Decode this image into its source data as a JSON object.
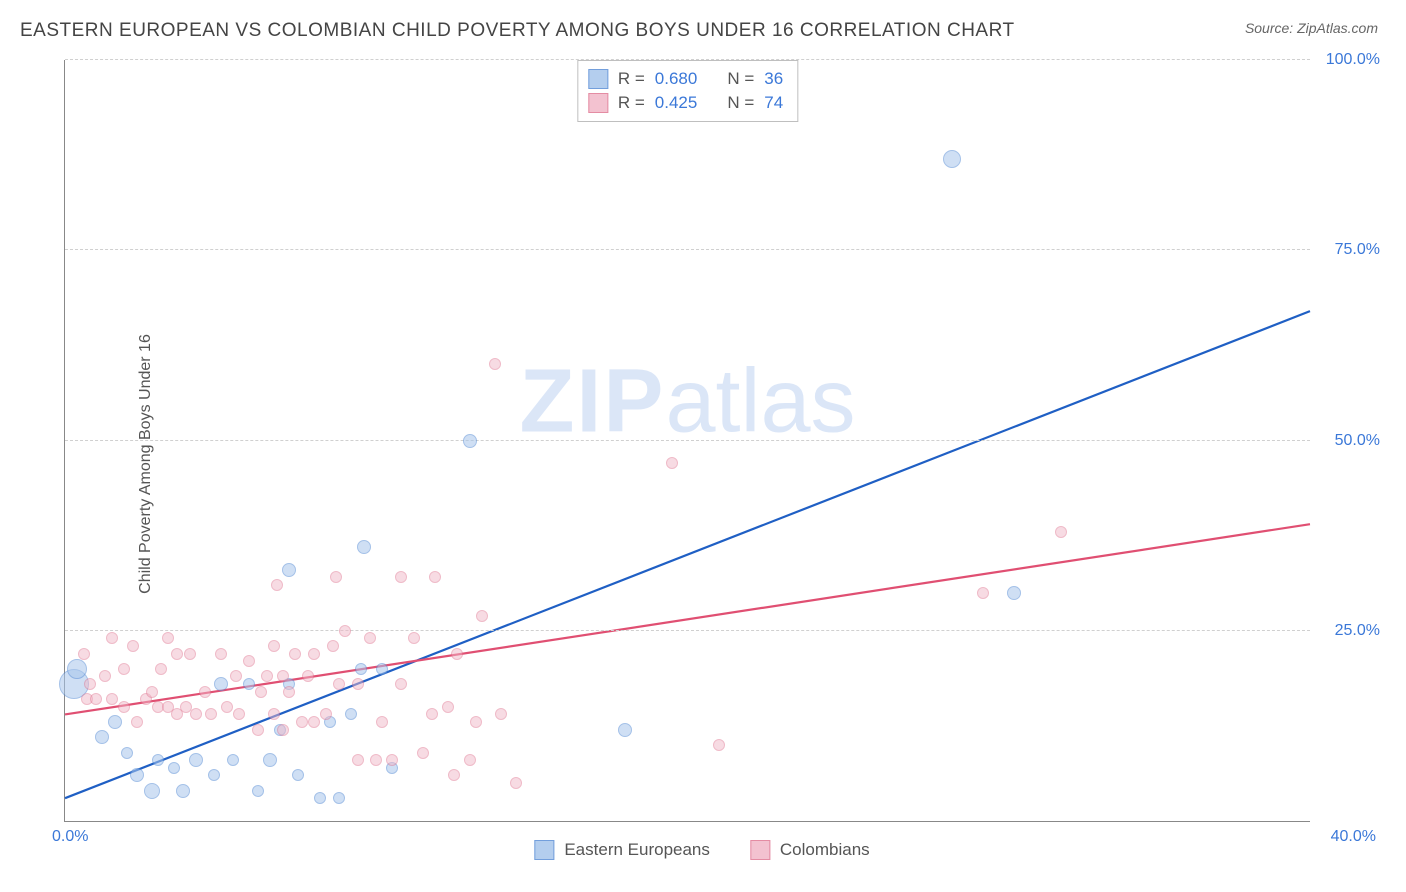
{
  "header": {
    "title": "EASTERN EUROPEAN VS COLOMBIAN CHILD POVERTY AMONG BOYS UNDER 16 CORRELATION CHART",
    "source_prefix": "Source: ",
    "source_name": "ZipAtlas.com"
  },
  "chart": {
    "type": "scatter",
    "ylabel": "Child Poverty Among Boys Under 16",
    "watermark_bold": "ZIP",
    "watermark_rest": "atlas",
    "xlim": [
      0,
      40
    ],
    "ylim": [
      0,
      100
    ],
    "yticks": [
      25,
      50,
      75,
      100
    ],
    "ytick_labels": [
      "25.0%",
      "50.0%",
      "75.0%",
      "100.0%"
    ],
    "x_origin_label": "0.0%",
    "x_max_label": "40.0%",
    "grid_color": "#d0d0d0",
    "axis_color": "#888888",
    "background_color": "#ffffff",
    "series": [
      {
        "name": "Eastern Europeans",
        "fill": "#a8c6ec",
        "fill_opacity": 0.55,
        "stroke": "#5b8fd6",
        "line_color": "#1f5fc4",
        "line_width": 2.2,
        "R": "0.680",
        "N": "36",
        "trend": {
          "x1": 0,
          "y1": 3,
          "x2": 40,
          "y2": 67
        },
        "points": [
          {
            "x": 0.3,
            "y": 18,
            "r": 15
          },
          {
            "x": 0.4,
            "y": 20,
            "r": 10
          },
          {
            "x": 1.2,
            "y": 11,
            "r": 7
          },
          {
            "x": 1.6,
            "y": 13,
            "r": 7
          },
          {
            "x": 2.0,
            "y": 9,
            "r": 6
          },
          {
            "x": 2.3,
            "y": 6,
            "r": 7
          },
          {
            "x": 2.8,
            "y": 4,
            "r": 8
          },
          {
            "x": 3.0,
            "y": 8,
            "r": 6
          },
          {
            "x": 3.5,
            "y": 7,
            "r": 6
          },
          {
            "x": 3.8,
            "y": 4,
            "r": 7
          },
          {
            "x": 4.2,
            "y": 8,
            "r": 7
          },
          {
            "x": 4.8,
            "y": 6,
            "r": 6
          },
          {
            "x": 5.0,
            "y": 18,
            "r": 7
          },
          {
            "x": 5.4,
            "y": 8,
            "r": 6
          },
          {
            "x": 5.9,
            "y": 18,
            "r": 6
          },
          {
            "x": 6.2,
            "y": 4,
            "r": 6
          },
          {
            "x": 6.6,
            "y": 8,
            "r": 7
          },
          {
            "x": 6.9,
            "y": 12,
            "r": 6
          },
          {
            "x": 7.2,
            "y": 18,
            "r": 6
          },
          {
            "x": 7.2,
            "y": 33,
            "r": 7
          },
          {
            "x": 7.5,
            "y": 6,
            "r": 6
          },
          {
            "x": 8.2,
            "y": 3,
            "r": 6
          },
          {
            "x": 8.5,
            "y": 13,
            "r": 6
          },
          {
            "x": 8.8,
            "y": 3,
            "r": 6
          },
          {
            "x": 9.2,
            "y": 14,
            "r": 6
          },
          {
            "x": 9.5,
            "y": 20,
            "r": 6
          },
          {
            "x": 9.6,
            "y": 36,
            "r": 7
          },
          {
            "x": 10.2,
            "y": 20,
            "r": 6
          },
          {
            "x": 10.5,
            "y": 7,
            "r": 6
          },
          {
            "x": 13.0,
            "y": 50,
            "r": 7
          },
          {
            "x": 18.0,
            "y": 12,
            "r": 7
          },
          {
            "x": 28.5,
            "y": 87,
            "r": 9
          },
          {
            "x": 30.5,
            "y": 30,
            "r": 7
          }
        ]
      },
      {
        "name": "Colombians",
        "fill": "#f1b8c8",
        "fill_opacity": 0.5,
        "stroke": "#e07893",
        "line_color": "#e04f72",
        "line_width": 2.2,
        "R": "0.425",
        "N": "74",
        "trend": {
          "x1": 0,
          "y1": 14,
          "x2": 40,
          "y2": 39
        },
        "points": [
          {
            "x": 0.6,
            "y": 22,
            "r": 6
          },
          {
            "x": 0.7,
            "y": 16,
            "r": 6
          },
          {
            "x": 0.8,
            "y": 18,
            "r": 6
          },
          {
            "x": 1.0,
            "y": 16,
            "r": 6
          },
          {
            "x": 1.3,
            "y": 19,
            "r": 6
          },
          {
            "x": 1.5,
            "y": 16,
            "r": 6
          },
          {
            "x": 1.5,
            "y": 24,
            "r": 6
          },
          {
            "x": 1.9,
            "y": 15,
            "r": 6
          },
          {
            "x": 1.9,
            "y": 20,
            "r": 6
          },
          {
            "x": 2.2,
            "y": 23,
            "r": 6
          },
          {
            "x": 2.3,
            "y": 13,
            "r": 6
          },
          {
            "x": 2.6,
            "y": 16,
            "r": 6
          },
          {
            "x": 2.8,
            "y": 17,
            "r": 6
          },
          {
            "x": 3.0,
            "y": 15,
            "r": 6
          },
          {
            "x": 3.1,
            "y": 20,
            "r": 6
          },
          {
            "x": 3.3,
            "y": 15,
            "r": 6
          },
          {
            "x": 3.3,
            "y": 24,
            "r": 6
          },
          {
            "x": 3.6,
            "y": 14,
            "r": 6
          },
          {
            "x": 3.6,
            "y": 22,
            "r": 6
          },
          {
            "x": 3.9,
            "y": 15,
            "r": 6
          },
          {
            "x": 4.0,
            "y": 22,
            "r": 6
          },
          {
            "x": 4.2,
            "y": 14,
            "r": 6
          },
          {
            "x": 4.5,
            "y": 17,
            "r": 6
          },
          {
            "x": 4.7,
            "y": 14,
            "r": 6
          },
          {
            "x": 5.0,
            "y": 22,
            "r": 6
          },
          {
            "x": 5.2,
            "y": 15,
            "r": 6
          },
          {
            "x": 5.5,
            "y": 19,
            "r": 6
          },
          {
            "x": 5.6,
            "y": 14,
            "r": 6
          },
          {
            "x": 5.9,
            "y": 21,
            "r": 6
          },
          {
            "x": 6.2,
            "y": 12,
            "r": 6
          },
          {
            "x": 6.3,
            "y": 17,
            "r": 6
          },
          {
            "x": 6.5,
            "y": 19,
            "r": 6
          },
          {
            "x": 6.7,
            "y": 14,
            "r": 6
          },
          {
            "x": 6.7,
            "y": 23,
            "r": 6
          },
          {
            "x": 6.8,
            "y": 31,
            "r": 6
          },
          {
            "x": 7.0,
            "y": 12,
            "r": 6
          },
          {
            "x": 7.0,
            "y": 19,
            "r": 6
          },
          {
            "x": 7.2,
            "y": 17,
            "r": 6
          },
          {
            "x": 7.4,
            "y": 22,
            "r": 6
          },
          {
            "x": 7.6,
            "y": 13,
            "r": 6
          },
          {
            "x": 7.8,
            "y": 19,
            "r": 6
          },
          {
            "x": 8.0,
            "y": 13,
            "r": 6
          },
          {
            "x": 8.0,
            "y": 22,
            "r": 6
          },
          {
            "x": 8.4,
            "y": 14,
            "r": 6
          },
          {
            "x": 8.6,
            "y": 23,
            "r": 6
          },
          {
            "x": 8.7,
            "y": 32,
            "r": 6
          },
          {
            "x": 8.8,
            "y": 18,
            "r": 6
          },
          {
            "x": 9.0,
            "y": 25,
            "r": 6
          },
          {
            "x": 9.4,
            "y": 8,
            "r": 6
          },
          {
            "x": 9.4,
            "y": 18,
            "r": 6
          },
          {
            "x": 9.8,
            "y": 24,
            "r": 6
          },
          {
            "x": 10.0,
            "y": 8,
            "r": 6
          },
          {
            "x": 10.2,
            "y": 13,
            "r": 6
          },
          {
            "x": 10.5,
            "y": 8,
            "r": 6
          },
          {
            "x": 10.8,
            "y": 18,
            "r": 6
          },
          {
            "x": 10.8,
            "y": 32,
            "r": 6
          },
          {
            "x": 11.2,
            "y": 24,
            "r": 6
          },
          {
            "x": 11.5,
            "y": 9,
            "r": 6
          },
          {
            "x": 11.8,
            "y": 14,
            "r": 6
          },
          {
            "x": 11.9,
            "y": 32,
            "r": 6
          },
          {
            "x": 12.3,
            "y": 15,
            "r": 6
          },
          {
            "x": 12.5,
            "y": 6,
            "r": 6
          },
          {
            "x": 12.6,
            "y": 22,
            "r": 6
          },
          {
            "x": 13.0,
            "y": 8,
            "r": 6
          },
          {
            "x": 13.2,
            "y": 13,
            "r": 6
          },
          {
            "x": 13.4,
            "y": 27,
            "r": 6
          },
          {
            "x": 13.8,
            "y": 60,
            "r": 6
          },
          {
            "x": 14.0,
            "y": 14,
            "r": 6
          },
          {
            "x": 14.5,
            "y": 5,
            "r": 6
          },
          {
            "x": 19.5,
            "y": 47,
            "r": 6
          },
          {
            "x": 21.0,
            "y": 10,
            "r": 6
          },
          {
            "x": 29.5,
            "y": 30,
            "r": 6
          },
          {
            "x": 32.0,
            "y": 38,
            "r": 6
          }
        ]
      }
    ]
  }
}
